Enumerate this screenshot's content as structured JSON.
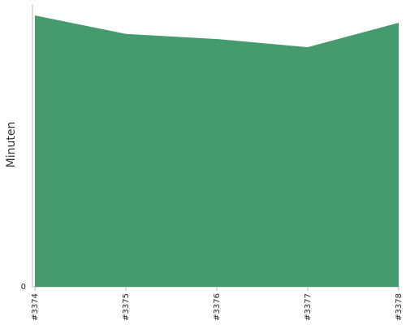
{
  "chart_data": {
    "type": "area",
    "categories": [
      "#3374",
      "#3375",
      "#3376",
      "#3377",
      "#3378"
    ],
    "series": [
      {
        "values": [
          100,
          93.2,
          91.3,
          88.3,
          97.3
        ]
      }
    ],
    "ylabel": "Minuten",
    "xlabel": "",
    "yticks": [
      "0"
    ],
    "ylim": [
      0,
      100
    ],
    "grid": false,
    "colors": {
      "area": "#459B6E",
      "axis": "#BBBBBB"
    }
  }
}
